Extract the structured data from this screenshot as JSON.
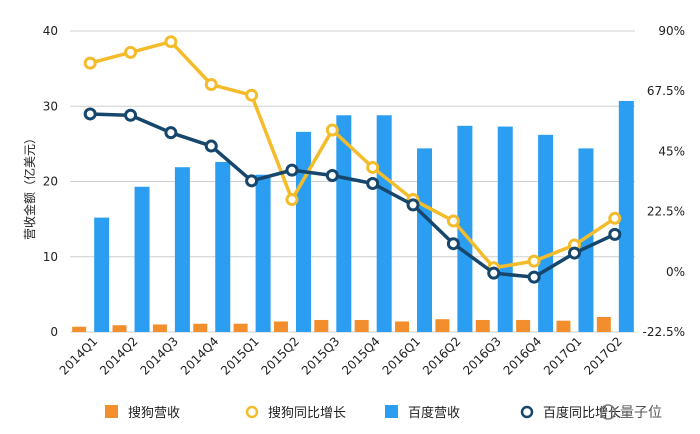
{
  "chart_data": {
    "type": "bar",
    "title": "",
    "categories": [
      "2014Q1",
      "2014Q2",
      "2014Q3",
      "2014Q4",
      "2015Q1",
      "2015Q2",
      "2015Q3",
      "2015Q4",
      "2016Q1",
      "2016Q2",
      "2016Q3",
      "2016Q4",
      "2017Q1",
      "2017Q2"
    ],
    "ylabel": "营收金额（亿美元）",
    "ylim": [
      0,
      40
    ],
    "yticks": [
      "0",
      "10",
      "20",
      "30",
      "40"
    ],
    "y2lim": [
      -22.5,
      90
    ],
    "y2ticks": [
      "-22.5%",
      "0%",
      "22.5%",
      "45%",
      "67.5%",
      "90%"
    ],
    "grid": true,
    "legend_position": "bottom",
    "series": [
      {
        "name": "搜狗营收",
        "kind": "bar",
        "axis": "left",
        "color": "#F28E2B",
        "values": [
          0.7,
          0.9,
          1.0,
          1.1,
          1.1,
          1.4,
          1.6,
          1.6,
          1.4,
          1.7,
          1.6,
          1.6,
          1.5,
          2.0
        ]
      },
      {
        "name": "搜狗同比增长",
        "kind": "line",
        "axis": "right",
        "color": "#F4BC2B",
        "values": [
          78,
          82,
          86,
          70,
          66,
          27,
          53,
          39,
          27,
          19,
          1.5,
          4,
          10,
          20
        ]
      },
      {
        "name": "百度营收",
        "kind": "bar",
        "axis": "left",
        "color": "#2C9EF2",
        "values": [
          15.2,
          19.3,
          21.9,
          22.6,
          20.9,
          26.6,
          28.8,
          28.8,
          24.4,
          27.4,
          27.3,
          26.2,
          24.4,
          30.7
        ]
      },
      {
        "name": "百度同比增长",
        "kind": "line",
        "axis": "right",
        "color": "#16466B",
        "values": [
          59,
          58.5,
          52,
          47,
          34,
          38,
          36,
          33,
          25,
          10.5,
          -0.5,
          -2,
          7,
          14
        ]
      }
    ]
  },
  "watermark": {
    "text": "量子位"
  }
}
